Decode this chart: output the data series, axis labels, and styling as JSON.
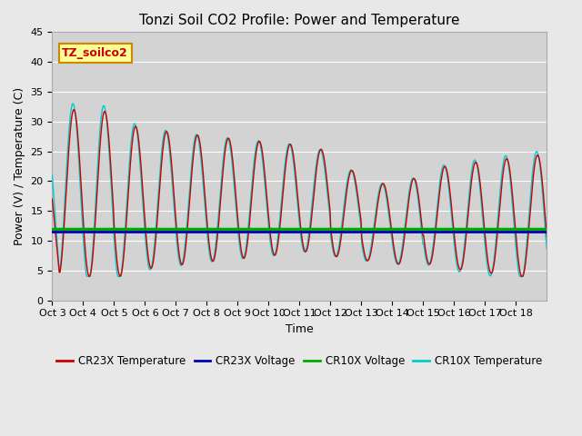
{
  "title": "Tonzi Soil CO2 Profile: Power and Temperature",
  "xlabel": "Time",
  "ylabel": "Power (V) / Temperature (C)",
  "ylim": [
    0,
    45
  ],
  "yticks": [
    0,
    5,
    10,
    15,
    20,
    25,
    30,
    35,
    40,
    45
  ],
  "xtick_labels": [
    "Oct 3",
    "Oct 4",
    "Oct 5",
    "Oct 6",
    "Oct 7",
    "Oct 8",
    "Oct 9",
    "Oct 10",
    "Oct 11",
    "Oct 12",
    "Oct 13",
    "Oct 14",
    "Oct 15",
    "Oct 16",
    "Oct 17",
    "Oct 18"
  ],
  "n_days": 16,
  "pts_per_day": 48,
  "cr23x_voltage_value": 11.5,
  "cr10x_voltage_value": 12.0,
  "fig_bg_color": "#e8e8e8",
  "plot_bg_color": "#d3d3d3",
  "cr23x_temp_color": "#cc0000",
  "cr23x_voltage_color": "#0000bb",
  "cr10x_voltage_color": "#00aa00",
  "cr10x_temp_color": "#00cccc",
  "legend_label_cr23x_temp": "CR23X Temperature",
  "legend_label_cr23x_volt": "CR23X Voltage",
  "legend_label_cr10x_volt": "CR10X Voltage",
  "legend_label_cr10x_temp": "CR10X Temperature",
  "annotation_text": "TZ_soilco2",
  "grid_color": "#ffffff",
  "title_fontsize": 11,
  "axis_label_fontsize": 9,
  "tick_fontsize": 8,
  "legend_fontsize": 8.5
}
